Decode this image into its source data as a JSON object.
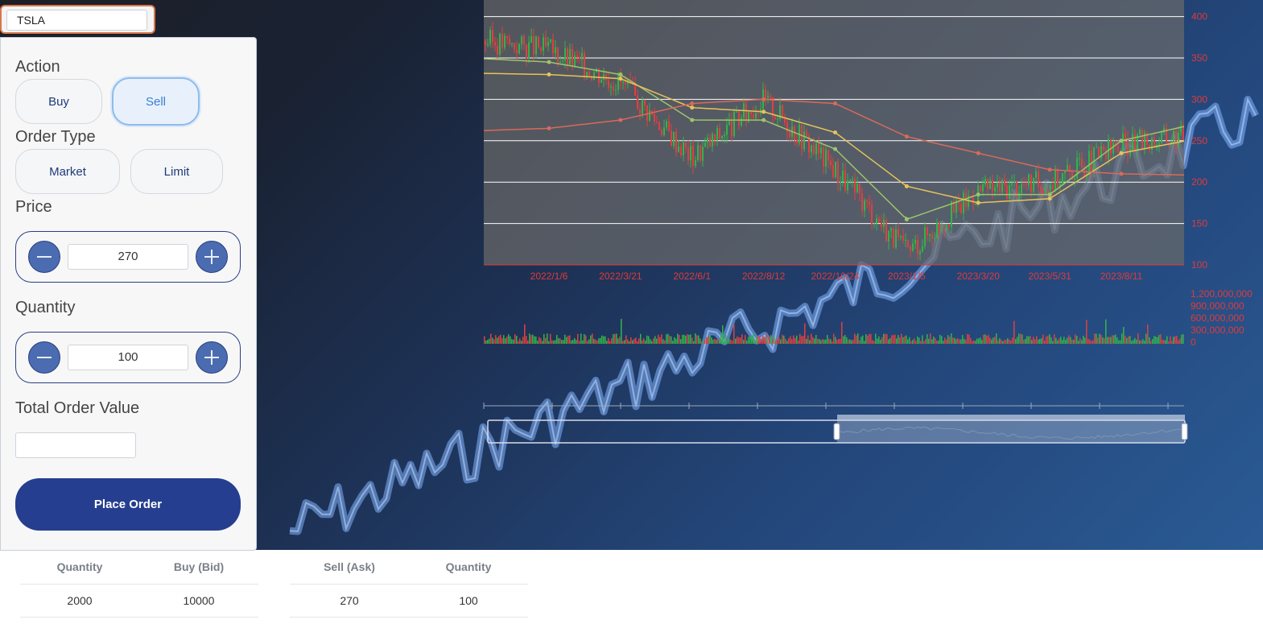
{
  "ticker": {
    "value": "TSLA"
  },
  "order_form": {
    "action_label": "Action",
    "buy_label": "Buy",
    "sell_label": "Sell",
    "action_selected": "Sell",
    "order_type_label": "Order Type",
    "market_label": "Market",
    "limit_label": "Limit",
    "price_label": "Price",
    "price_value": "270",
    "quantity_label": "Quantity",
    "quantity_value": "100",
    "total_label": "Total Order Value",
    "total_value": "",
    "place_order_label": "Place Order"
  },
  "icons": {
    "minus": "minus-icon",
    "plus": "plus-icon"
  },
  "order_book": {
    "bid_headers": [
      "Quantity",
      "Buy (Bid)"
    ],
    "ask_headers": [
      "Sell (Ask)",
      "Quantity"
    ],
    "bids": [
      [
        "2000",
        "10000"
      ]
    ],
    "asks": [
      [
        "270",
        "100"
      ]
    ]
  },
  "colors": {
    "accent": "#253e8f",
    "stepper_button": "#4b6cb0",
    "axis_text": "#e03a3a",
    "ticker_border": "#d9774a"
  },
  "chart_data": {
    "type": "candlestick",
    "title": "",
    "x_tick_labels": [
      "2022/1/6",
      "2022/3/21",
      "2022/6/1",
      "2022/8/12",
      "2022/10/24",
      "2023/1/5",
      "2023/3/20",
      "2023/5/31",
      "2023/8/11"
    ],
    "y_tick_labels": [
      "400",
      "350",
      "300",
      "250",
      "200",
      "150",
      "100"
    ],
    "ylim": [
      100,
      420
    ],
    "volume_tick_labels": [
      "1,200,000,000",
      "900,000,000",
      "600,000,000",
      "300,000,000",
      "0"
    ],
    "price_trend": [
      {
        "x": "2022/1/6",
        "close": 360
      },
      {
        "x": "2022/3/21",
        "close": 320
      },
      {
        "x": "2022/6/1",
        "close": 230
      },
      {
        "x": "2022/8/12",
        "close": 300
      },
      {
        "x": "2022/10/24",
        "close": 215
      },
      {
        "x": "2023/1/5",
        "close": 115
      },
      {
        "x": "2023/3/20",
        "close": 190
      },
      {
        "x": "2023/5/31",
        "close": 200
      },
      {
        "x": "2023/8/11",
        "close": 245
      }
    ],
    "moving_averages": [
      {
        "color": "#9ec46a",
        "values": [
          345,
          330,
          275,
          275,
          240,
          155,
          185,
          185,
          250
        ]
      },
      {
        "color": "#e8c35a",
        "values": [
          330,
          325,
          290,
          285,
          260,
          195,
          175,
          180,
          235
        ]
      },
      {
        "color": "#d96a5a",
        "values": [
          265,
          275,
          295,
          300,
          295,
          255,
          235,
          215,
          210
        ]
      }
    ],
    "grid": true,
    "has_zoom_slider": true
  }
}
